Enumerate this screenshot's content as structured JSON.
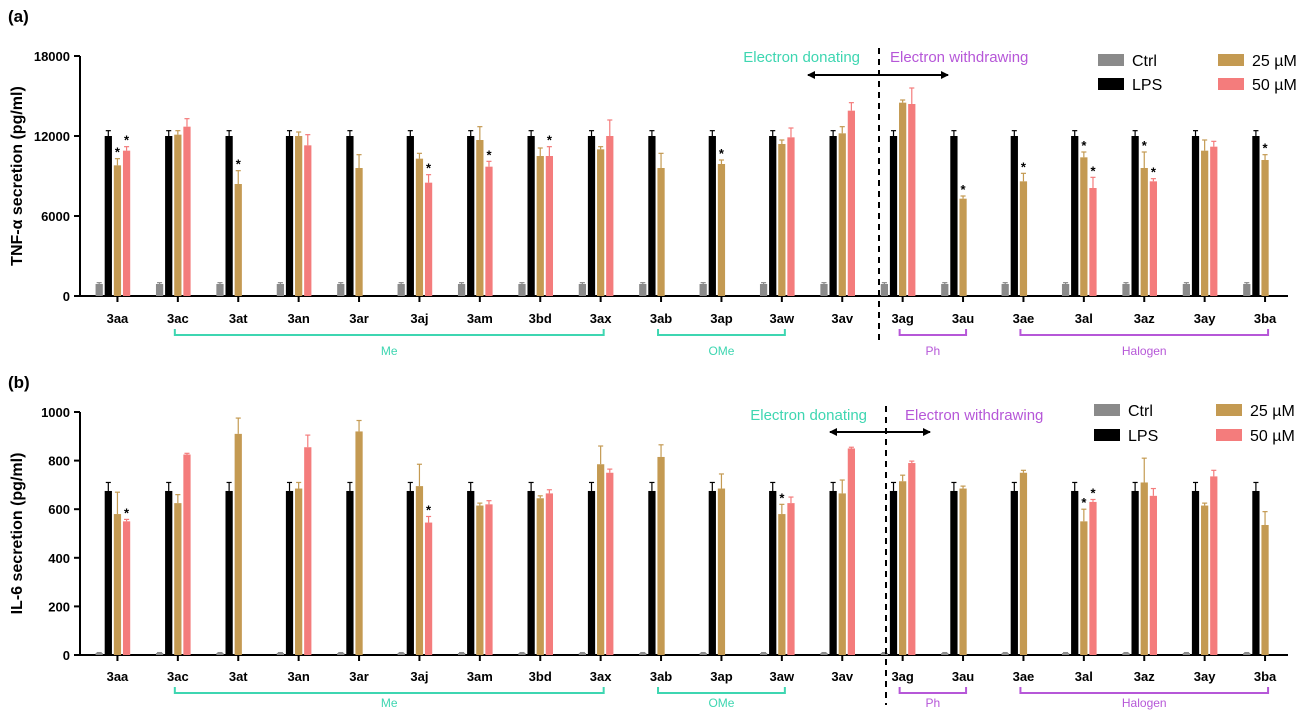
{
  "colors": {
    "ctrl": "#8a8a8a",
    "lps": "#000000",
    "c25": "#c49a52",
    "c50": "#f47c7c",
    "donating": "#3ed6b1",
    "withdrawing": "#b657d8"
  },
  "legend": [
    "Ctrl",
    "LPS",
    "25 µM",
    "50 µM"
  ],
  "annotations": {
    "donating": "Electron donating",
    "withdrawing": "Electron withdrawing"
  },
  "chart_data": [
    {
      "panel": "(a)",
      "type": "bar",
      "ylabel": "TNF-α secretion (pg/ml)",
      "ylim": [
        0,
        18000
      ],
      "yticks": [
        0,
        6000,
        12000,
        18000
      ],
      "categories": [
        "3aa",
        "3ac",
        "3at",
        "3an",
        "3ar",
        "3aj",
        "3am",
        "3bd",
        "3ax",
        "3ab",
        "3ap",
        "3aw",
        "3av",
        "3ag",
        "3au",
        "3ae",
        "3al",
        "3az",
        "3ay",
        "3ba"
      ],
      "series": [
        {
          "name": "Ctrl",
          "values": [
            900,
            900,
            900,
            900,
            900,
            900,
            900,
            900,
            900,
            900,
            900,
            900,
            900,
            900,
            900,
            900,
            900,
            900,
            900,
            900
          ],
          "errors": [
            100,
            100,
            100,
            100,
            100,
            100,
            100,
            100,
            100,
            100,
            100,
            100,
            100,
            100,
            100,
            100,
            100,
            100,
            100,
            100
          ]
        },
        {
          "name": "LPS",
          "values": [
            12000,
            12000,
            12000,
            12000,
            12000,
            12000,
            12000,
            12000,
            12000,
            12000,
            12000,
            12000,
            12000,
            12000,
            12000,
            12000,
            12000,
            12000,
            12000,
            12000
          ],
          "errors": [
            400,
            400,
            400,
            400,
            400,
            400,
            400,
            400,
            400,
            400,
            400,
            400,
            400,
            400,
            400,
            400,
            400,
            400,
            400,
            400
          ]
        },
        {
          "name": "25 µM",
          "values": [
            9800,
            12100,
            8400,
            12000,
            9600,
            10300,
            11700,
            10500,
            11000,
            9600,
            9900,
            11400,
            12200,
            14500,
            7300,
            8600,
            10400,
            9600,
            10900,
            10200
          ],
          "errors": [
            500,
            300,
            1000,
            300,
            1000,
            400,
            1000,
            600,
            200,
            1100,
            300,
            300,
            500,
            200,
            200,
            600,
            400,
            1200,
            800,
            400
          ],
          "stars": [
            1,
            0,
            1,
            0,
            0,
            0,
            0,
            0,
            0,
            0,
            1,
            0,
            0,
            0,
            1,
            1,
            1,
            1,
            0,
            1
          ]
        },
        {
          "name": "50 µM",
          "values": [
            10900,
            12700,
            null,
            11300,
            null,
            8500,
            9700,
            10500,
            12000,
            null,
            null,
            11900,
            13900,
            14400,
            null,
            null,
            8100,
            8600,
            11200,
            null
          ],
          "errors": [
            300,
            600,
            null,
            800,
            null,
            600,
            400,
            700,
            1200,
            null,
            null,
            700,
            600,
            1200,
            null,
            null,
            800,
            200,
            400,
            null
          ],
          "stars": [
            1,
            0,
            0,
            0,
            0,
            1,
            1,
            1,
            0,
            0,
            0,
            0,
            0,
            0,
            0,
            0,
            1,
            1,
            0,
            0
          ]
        }
      ],
      "groups": [
        {
          "label": "Me",
          "from": "3ac",
          "to": "3ax",
          "color": "donating"
        },
        {
          "label": "OMe",
          "from": "3ab",
          "to": "3aw",
          "color": "donating"
        },
        {
          "label": "Ph",
          "from": "3ag",
          "to": "3au",
          "color": "withdrawing"
        },
        {
          "label": "Halogen",
          "from": "3ae",
          "to": "3ba",
          "color": "withdrawing"
        }
      ],
      "legend_position": "top-right"
    },
    {
      "panel": "(b)",
      "type": "bar",
      "ylabel": "IL-6 secretion (pg/ml)",
      "ylim": [
        0,
        1000
      ],
      "yticks": [
        0,
        200,
        400,
        600,
        800,
        1000
      ],
      "categories": [
        "3aa",
        "3ac",
        "3at",
        "3an",
        "3ar",
        "3aj",
        "3am",
        "3bd",
        "3ax",
        "3ab",
        "3ap",
        "3aw",
        "3av",
        "3ag",
        "3au",
        "3ae",
        "3al",
        "3az",
        "3ay",
        "3ba"
      ],
      "series": [
        {
          "name": "Ctrl",
          "values": [
            8,
            8,
            8,
            8,
            8,
            8,
            8,
            8,
            8,
            8,
            8,
            8,
            8,
            8,
            8,
            8,
            8,
            8,
            8,
            8
          ],
          "errors": [
            2,
            2,
            2,
            2,
            2,
            2,
            2,
            2,
            2,
            2,
            2,
            2,
            2,
            2,
            2,
            2,
            2,
            2,
            2,
            2
          ]
        },
        {
          "name": "LPS",
          "values": [
            675,
            675,
            675,
            675,
            675,
            675,
            675,
            675,
            675,
            675,
            675,
            675,
            675,
            675,
            675,
            675,
            675,
            675,
            675,
            675
          ],
          "errors": [
            35,
            35,
            35,
            35,
            35,
            35,
            35,
            35,
            35,
            35,
            35,
            35,
            35,
            35,
            35,
            35,
            35,
            35,
            35,
            35
          ]
        },
        {
          "name": "25 µM",
          "values": [
            580,
            625,
            910,
            685,
            920,
            695,
            615,
            645,
            785,
            815,
            685,
            580,
            665,
            715,
            685,
            750,
            550,
            710,
            615,
            535
          ],
          "errors": [
            90,
            35,
            65,
            25,
            45,
            90,
            10,
            10,
            75,
            50,
            60,
            40,
            55,
            25,
            10,
            10,
            50,
            100,
            10,
            55
          ],
          "stars": [
            0,
            0,
            0,
            0,
            0,
            0,
            0,
            0,
            0,
            0,
            0,
            1,
            0,
            0,
            0,
            0,
            1,
            0,
            0,
            0
          ]
        },
        {
          "name": "50 µM",
          "values": [
            550,
            825,
            null,
            855,
            null,
            545,
            620,
            665,
            750,
            null,
            null,
            625,
            850,
            790,
            null,
            null,
            630,
            655,
            735,
            null
          ],
          "errors": [
            8,
            5,
            null,
            50,
            null,
            25,
            15,
            15,
            15,
            null,
            null,
            25,
            5,
            8,
            null,
            null,
            10,
            30,
            25,
            null
          ],
          "stars": [
            1,
            0,
            0,
            0,
            0,
            1,
            0,
            0,
            0,
            0,
            0,
            0,
            0,
            0,
            0,
            0,
            1,
            0,
            0,
            0
          ]
        }
      ],
      "groups": [
        {
          "label": "Me",
          "from": "3ac",
          "to": "3ax",
          "color": "donating"
        },
        {
          "label": "OMe",
          "from": "3ab",
          "to": "3aw",
          "color": "donating"
        },
        {
          "label": "Ph",
          "from": "3ag",
          "to": "3au",
          "color": "withdrawing"
        },
        {
          "label": "Halogen",
          "from": "3ae",
          "to": "3ba",
          "color": "withdrawing"
        }
      ],
      "legend_position": "top-right"
    }
  ]
}
